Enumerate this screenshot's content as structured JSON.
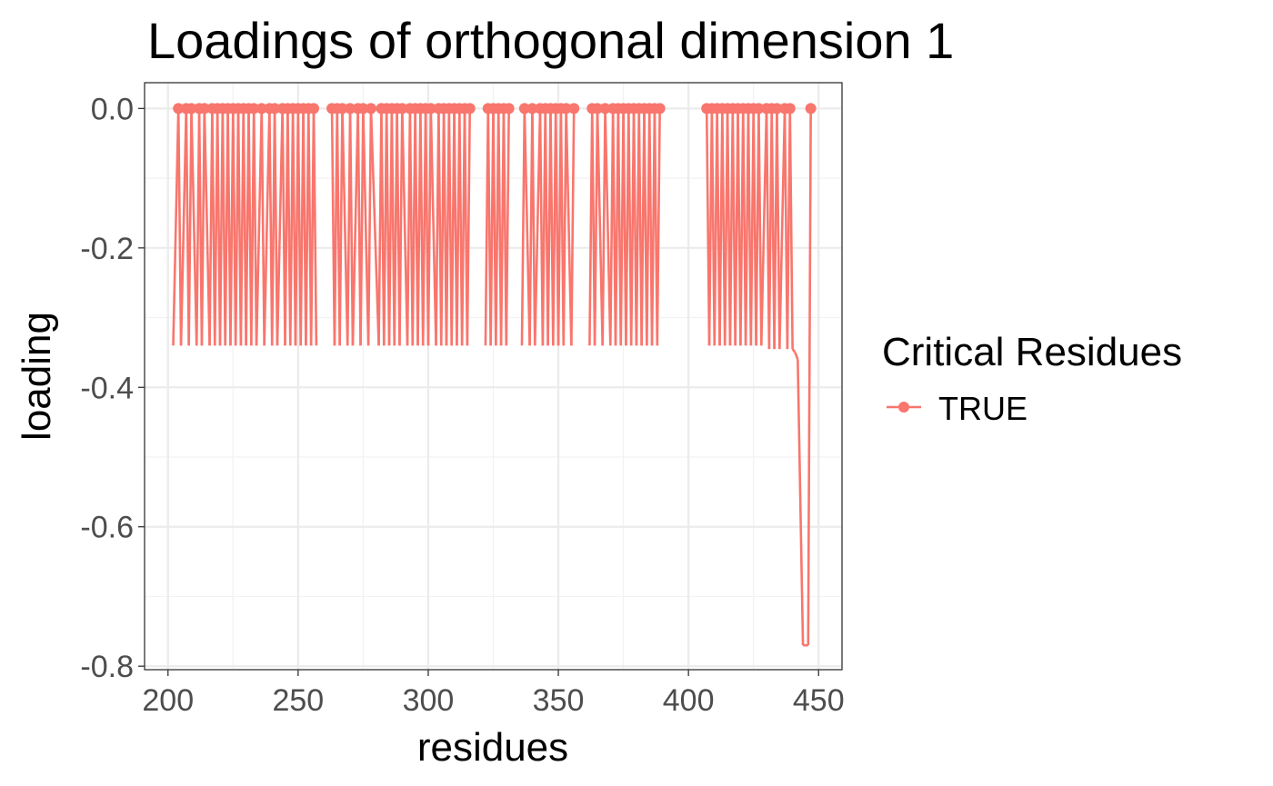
{
  "chart_data": {
    "type": "line",
    "title": "Loadings of orthogonal dimension 1",
    "xlabel": "residues",
    "ylabel": "loading",
    "xlim": [
      191,
      459
    ],
    "ylim": [
      -0.805,
      0.037
    ],
    "x_ticks": [
      200,
      250,
      300,
      350,
      400,
      450
    ],
    "x_tick_labels": [
      "200",
      "250",
      "300",
      "350",
      "400",
      "450"
    ],
    "y_ticks": [
      0.0,
      -0.2,
      -0.4,
      -0.6,
      -0.8
    ],
    "y_tick_labels": [
      "0.0",
      "-0.2",
      "-0.4",
      "-0.6",
      "-0.8"
    ],
    "grid": true,
    "legend_position": "right",
    "legend_title": "Critical Residues",
    "series": [
      {
        "name": "TRUE",
        "color": "#F8766D",
        "points": [
          {
            "x": 202,
            "y": -0.34
          },
          {
            "x": 204,
            "y": 0.0
          },
          {
            "x": 205,
            "y": -0.34
          },
          {
            "x": 207,
            "y": 0.0
          },
          {
            "x": 208,
            "y": -0.34
          },
          {
            "x": 209,
            "y": 0.0
          },
          {
            "x": 211,
            "y": -0.34
          },
          {
            "x": 212,
            "y": 0.0
          },
          {
            "x": 213,
            "y": -0.34
          },
          {
            "x": 214,
            "y": 0.0
          },
          {
            "x": 216,
            "y": -0.34
          },
          {
            "x": 217,
            "y": 0.0
          },
          {
            "x": 218,
            "y": -0.34
          },
          {
            "x": 219,
            "y": 0.0
          },
          {
            "x": 220,
            "y": -0.34
          },
          {
            "x": 221,
            "y": 0.0
          },
          {
            "x": 222,
            "y": -0.34
          },
          {
            "x": 223,
            "y": 0.0
          },
          {
            "x": 224,
            "y": -0.34
          },
          {
            "x": 225,
            "y": 0.0
          },
          {
            "x": 226,
            "y": -0.34
          },
          {
            "x": 227,
            "y": 0.0
          },
          {
            "x": 228,
            "y": -0.34
          },
          {
            "x": 229,
            "y": 0.0
          },
          {
            "x": 230,
            "y": -0.34
          },
          {
            "x": 231,
            "y": 0.0
          },
          {
            "x": 232,
            "y": -0.34
          },
          {
            "x": 233,
            "y": 0.0
          },
          {
            "x": 234,
            "y": -0.34
          },
          {
            "x": 236,
            "y": 0.0
          },
          {
            "x": 237,
            "y": -0.34
          },
          {
            "x": 239,
            "y": 0.0
          },
          {
            "x": 240,
            "y": -0.34
          },
          {
            "x": 241,
            "y": 0.0
          },
          {
            "x": 242,
            "y": -0.34
          },
          {
            "x": 244,
            "y": 0.0
          },
          {
            "x": 245,
            "y": -0.34
          },
          {
            "x": 246,
            "y": 0.0
          },
          {
            "x": 247,
            "y": -0.34
          },
          {
            "x": 248,
            "y": 0.0
          },
          {
            "x": 249,
            "y": -0.34
          },
          {
            "x": 250,
            "y": 0.0
          },
          {
            "x": 251,
            "y": -0.34
          },
          {
            "x": 252,
            "y": 0.0
          },
          {
            "x": 253,
            "y": -0.34
          },
          {
            "x": 254,
            "y": 0.0
          },
          {
            "x": 255,
            "y": -0.34
          },
          {
            "x": 256,
            "y": 0.0
          },
          {
            "x": 257,
            "y": -0.34
          },
          {
            "x": 263,
            "y": 0.0
          },
          {
            "x": 264,
            "y": -0.34
          },
          {
            "x": 265,
            "y": 0.0
          },
          {
            "x": 266,
            "y": -0.34
          },
          {
            "x": 267,
            "y": 0.0
          },
          {
            "x": 269,
            "y": -0.34
          },
          {
            "x": 270,
            "y": 0.0
          },
          {
            "x": 271,
            "y": -0.34
          },
          {
            "x": 273,
            "y": 0.0
          },
          {
            "x": 274,
            "y": -0.34
          },
          {
            "x": 275,
            "y": 0.0
          },
          {
            "x": 277,
            "y": -0.34
          },
          {
            "x": 278,
            "y": 0.0
          },
          {
            "x": 281,
            "y": -0.34
          },
          {
            "x": 282,
            "y": 0.0
          },
          {
            "x": 283,
            "y": -0.34
          },
          {
            "x": 284,
            "y": 0.0
          },
          {
            "x": 285,
            "y": -0.34
          },
          {
            "x": 286,
            "y": 0.0
          },
          {
            "x": 287,
            "y": -0.34
          },
          {
            "x": 288,
            "y": 0.0
          },
          {
            "x": 289,
            "y": -0.34
          },
          {
            "x": 290,
            "y": 0.0
          },
          {
            "x": 292,
            "y": -0.34
          },
          {
            "x": 293,
            "y": 0.0
          },
          {
            "x": 294,
            "y": -0.34
          },
          {
            "x": 295,
            "y": 0.0
          },
          {
            "x": 296,
            "y": -0.34
          },
          {
            "x": 297,
            "y": 0.0
          },
          {
            "x": 298,
            "y": -0.34
          },
          {
            "x": 299,
            "y": 0.0
          },
          {
            "x": 300,
            "y": -0.34
          },
          {
            "x": 301,
            "y": 0.0
          },
          {
            "x": 303,
            "y": -0.34
          },
          {
            "x": 304,
            "y": 0.0
          },
          {
            "x": 305,
            "y": -0.34
          },
          {
            "x": 306,
            "y": 0.0
          },
          {
            "x": 307,
            "y": -0.34
          },
          {
            "x": 308,
            "y": 0.0
          },
          {
            "x": 309,
            "y": -0.34
          },
          {
            "x": 310,
            "y": 0.0
          },
          {
            "x": 311,
            "y": -0.34
          },
          {
            "x": 312,
            "y": 0.0
          },
          {
            "x": 313,
            "y": -0.34
          },
          {
            "x": 314,
            "y": 0.0
          },
          {
            "x": 315,
            "y": -0.34
          },
          {
            "x": 316,
            "y": 0.0
          },
          {
            "x": 322,
            "y": -0.34
          },
          {
            "x": 323,
            "y": 0.0
          },
          {
            "x": 324,
            "y": -0.34
          },
          {
            "x": 325,
            "y": 0.0
          },
          {
            "x": 326,
            "y": -0.34
          },
          {
            "x": 327,
            "y": 0.0
          },
          {
            "x": 328,
            "y": -0.34
          },
          {
            "x": 329,
            "y": 0.0
          },
          {
            "x": 330,
            "y": -0.34
          },
          {
            "x": 331,
            "y": 0.0
          },
          {
            "x": 336,
            "y": -0.34
          },
          {
            "x": 337,
            "y": 0.0
          },
          {
            "x": 339,
            "y": -0.34
          },
          {
            "x": 340,
            "y": 0.0
          },
          {
            "x": 341,
            "y": -0.34
          },
          {
            "x": 343,
            "y": 0.0
          },
          {
            "x": 344,
            "y": -0.34
          },
          {
            "x": 345,
            "y": 0.0
          },
          {
            "x": 346,
            "y": -0.34
          },
          {
            "x": 347,
            "y": 0.0
          },
          {
            "x": 348,
            "y": -0.34
          },
          {
            "x": 349,
            "y": 0.0
          },
          {
            "x": 350,
            "y": -0.34
          },
          {
            "x": 351,
            "y": 0.0
          },
          {
            "x": 352,
            "y": -0.34
          },
          {
            "x": 353,
            "y": 0.0
          },
          {
            "x": 355,
            "y": -0.34
          },
          {
            "x": 356,
            "y": 0.0
          },
          {
            "x": 362,
            "y": -0.34
          },
          {
            "x": 363,
            "y": 0.0
          },
          {
            "x": 364,
            "y": -0.34
          },
          {
            "x": 365,
            "y": 0.0
          },
          {
            "x": 367,
            "y": -0.34
          },
          {
            "x": 368,
            "y": 0.0
          },
          {
            "x": 370,
            "y": -0.34
          },
          {
            "x": 371,
            "y": 0.0
          },
          {
            "x": 372,
            "y": -0.34
          },
          {
            "x": 373,
            "y": 0.0
          },
          {
            "x": 374,
            "y": -0.34
          },
          {
            "x": 375,
            "y": 0.0
          },
          {
            "x": 376,
            "y": -0.34
          },
          {
            "x": 377,
            "y": 0.0
          },
          {
            "x": 378,
            "y": -0.34
          },
          {
            "x": 379,
            "y": 0.0
          },
          {
            "x": 380,
            "y": -0.34
          },
          {
            "x": 381,
            "y": 0.0
          },
          {
            "x": 382,
            "y": -0.34
          },
          {
            "x": 383,
            "y": 0.0
          },
          {
            "x": 384,
            "y": -0.34
          },
          {
            "x": 385,
            "y": 0.0
          },
          {
            "x": 386,
            "y": -0.34
          },
          {
            "x": 387,
            "y": 0.0
          },
          {
            "x": 388,
            "y": -0.34
          },
          {
            "x": 389,
            "y": 0.0
          },
          {
            "x": 407,
            "y": 0.0
          },
          {
            "x": 408,
            "y": -0.34
          },
          {
            "x": 409,
            "y": 0.0
          },
          {
            "x": 410,
            "y": -0.34
          },
          {
            "x": 411,
            "y": 0.0
          },
          {
            "x": 412,
            "y": -0.34
          },
          {
            "x": 413,
            "y": 0.0
          },
          {
            "x": 414,
            "y": -0.34
          },
          {
            "x": 415,
            "y": 0.0
          },
          {
            "x": 416,
            "y": -0.34
          },
          {
            "x": 417,
            "y": 0.0
          },
          {
            "x": 418,
            "y": -0.34
          },
          {
            "x": 419,
            "y": 0.0
          },
          {
            "x": 420,
            "y": -0.34
          },
          {
            "x": 421,
            "y": 0.0
          },
          {
            "x": 422,
            "y": -0.34
          },
          {
            "x": 423,
            "y": 0.0
          },
          {
            "x": 424,
            "y": -0.34
          },
          {
            "x": 425,
            "y": 0.0
          },
          {
            "x": 426,
            "y": -0.34
          },
          {
            "x": 427,
            "y": 0.0
          },
          {
            "x": 428,
            "y": -0.34
          },
          {
            "x": 430,
            "y": 0.0
          },
          {
            "x": 431,
            "y": -0.345
          },
          {
            "x": 432,
            "y": 0.0
          },
          {
            "x": 433,
            "y": -0.345
          },
          {
            "x": 434,
            "y": 0.0
          },
          {
            "x": 435,
            "y": -0.345
          },
          {
            "x": 437,
            "y": 0.0
          },
          {
            "x": 438,
            "y": -0.345
          },
          {
            "x": 439,
            "y": 0.0
          },
          {
            "x": 440,
            "y": -0.345
          },
          {
            "x": 441,
            "y": -0.35
          },
          {
            "x": 442,
            "y": -0.36
          },
          {
            "x": 443,
            "y": -0.565
          },
          {
            "x": 444,
            "y": -0.77
          },
          {
            "x": 445,
            "y": -0.77
          },
          {
            "x": 446,
            "y": -0.77
          },
          {
            "x": 447,
            "y": 0.0
          }
        ]
      }
    ]
  }
}
